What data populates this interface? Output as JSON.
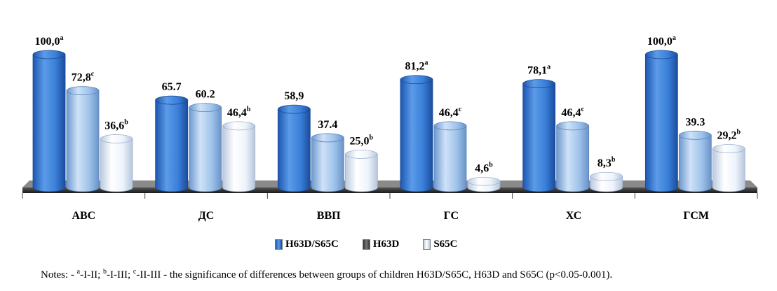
{
  "chart_data": {
    "type": "bar",
    "categories": [
      "АВС",
      "ДС",
      "ВВП",
      "ГС",
      "ХС",
      "ГСМ"
    ],
    "series": [
      {
        "name": "H63D/S65C",
        "values": [
          100.0,
          65.7,
          58.9,
          81.2,
          78.1,
          100.0
        ],
        "labels": [
          "100,0",
          "65.7",
          "58,9",
          "81,2",
          "78,1",
          "100,0"
        ],
        "sups": [
          "a",
          "",
          "",
          "a",
          "a",
          "a"
        ]
      },
      {
        "name": "H63D",
        "values": [
          72.8,
          60.2,
          37.4,
          46.4,
          46.4,
          39.3
        ],
        "labels": [
          "72,8",
          "60.2",
          "37.4",
          "46,4",
          "46,4",
          "39.3"
        ],
        "sups": [
          "c",
          "",
          "",
          "c",
          "c",
          ""
        ]
      },
      {
        "name": "S65C",
        "values": [
          36.6,
          46.4,
          25.0,
          4.6,
          8.3,
          29.2
        ],
        "labels": [
          "36,6",
          "46,4",
          "25,0",
          "4,6",
          "8,3",
          "29,2"
        ],
        "sups": [
          "b",
          "b",
          "b",
          "b",
          "b",
          "b"
        ]
      }
    ],
    "ylim": [
      0,
      100
    ],
    "grid": false,
    "legend_position": "bottom",
    "colors": [
      "#2f6fcc",
      "#8fb8e6",
      "#eef4fb"
    ]
  },
  "legend": [
    {
      "label": "H63D/S65C"
    },
    {
      "label": "H63D"
    },
    {
      "label": "S65C"
    }
  ],
  "notes": {
    "prefix": "Notes: - ",
    "s1": "a",
    "t1": "-I-II; ",
    "s2": "b",
    "t2": "-I-III; ",
    "s3": "c",
    "t3": "-II-III - the significance of differences between groups of children H63D/S65C, H63D and S65C (p<0.05-0.001)."
  }
}
